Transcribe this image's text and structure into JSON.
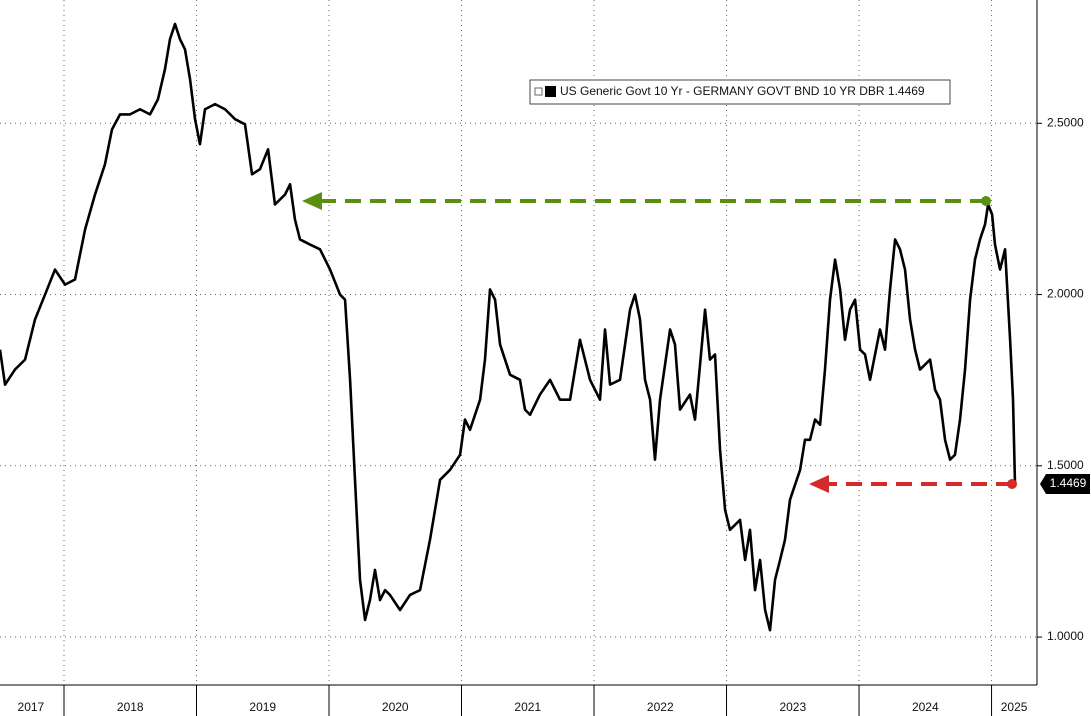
{
  "chart_data": {
    "type": "line",
    "series": [
      {
        "name": "US Generic Govt 10 Yr - GERMANY GOVT BND 10 YR DBR",
        "color": "#000000",
        "last_label": "1.4469",
        "x": [
          2017.517,
          2017.555,
          2017.63,
          2017.706,
          2017.781,
          2017.857,
          2017.932,
          2018.008,
          2018.083,
          2018.159,
          2018.234,
          2018.309,
          2018.362,
          2018.423,
          2018.498,
          2018.574,
          2018.649,
          2018.709,
          2018.762,
          2018.8,
          2018.838,
          2018.875,
          2018.913,
          2018.951,
          2018.989,
          2019.026,
          2019.064,
          2019.14,
          2019.215,
          2019.291,
          2019.366,
          2019.419,
          2019.479,
          2019.54,
          2019.592,
          2019.668,
          2019.706,
          2019.743,
          2019.781,
          2019.857,
          2019.932,
          2020.008,
          2020.083,
          2020.121,
          2020.159,
          2020.196,
          2020.234,
          2020.272,
          2020.309,
          2020.347,
          2020.385,
          2020.423,
          2020.46,
          2020.536,
          2020.611,
          2020.687,
          2020.762,
          2020.838,
          2020.913,
          2020.989,
          2021.026,
          2021.064,
          2021.14,
          2021.177,
          2021.215,
          2021.253,
          2021.291,
          2021.366,
          2021.441,
          2021.479,
          2021.517,
          2021.592,
          2021.668,
          2021.743,
          2021.819,
          2021.894,
          2021.97,
          2022.045,
          2022.083,
          2022.121,
          2022.196,
          2022.272,
          2022.309,
          2022.347,
          2022.385,
          2022.423,
          2022.46,
          2022.498,
          2022.574,
          2022.611,
          2022.649,
          2022.724,
          2022.762,
          2022.838,
          2022.875,
          2022.913,
          2022.951,
          2022.989,
          2023.026,
          2023.102,
          2023.14,
          2023.177,
          2023.215,
          2023.253,
          2023.291,
          2023.328,
          2023.366,
          2023.404,
          2023.441,
          2023.479,
          2023.555,
          2023.592,
          2023.63,
          2023.668,
          2023.706,
          2023.743,
          2023.781,
          2023.819,
          2023.857,
          2023.894,
          2023.932,
          2023.97,
          2024.008,
          2024.045,
          2024.083,
          2024.158,
          2024.196,
          2024.234,
          2024.272,
          2024.309,
          2024.347,
          2024.385,
          2024.423,
          2024.46,
          2024.536,
          2024.574,
          2024.611,
          2024.649,
          2024.687,
          2024.724,
          2024.762,
          2024.8,
          2024.838,
          2024.875,
          2024.913,
          2024.951,
          2024.974,
          2025.004,
          2025.026,
          2025.064,
          2025.102,
          2025.14,
          2025.162,
          2025.177
        ],
        "values": [
          1.839,
          1.737,
          1.781,
          1.81,
          1.927,
          2.0,
          2.073,
          2.029,
          2.044,
          2.19,
          2.292,
          2.38,
          2.482,
          2.526,
          2.526,
          2.541,
          2.526,
          2.57,
          2.658,
          2.746,
          2.79,
          2.746,
          2.716,
          2.629,
          2.512,
          2.439,
          2.541,
          2.556,
          2.541,
          2.512,
          2.497,
          2.351,
          2.366,
          2.424,
          2.263,
          2.292,
          2.322,
          2.219,
          2.161,
          2.146,
          2.132,
          2.073,
          2.0,
          1.985,
          1.751,
          1.459,
          1.167,
          1.05,
          1.108,
          1.196,
          1.108,
          1.137,
          1.123,
          1.079,
          1.123,
          1.137,
          1.284,
          1.459,
          1.488,
          1.532,
          1.635,
          1.605,
          1.693,
          1.81,
          2.015,
          1.985,
          1.854,
          1.766,
          1.751,
          1.664,
          1.649,
          1.708,
          1.751,
          1.693,
          1.693,
          1.868,
          1.751,
          1.693,
          1.898,
          1.737,
          1.751,
          1.956,
          2.0,
          1.927,
          1.751,
          1.693,
          1.518,
          1.693,
          1.898,
          1.854,
          1.664,
          1.708,
          1.635,
          1.956,
          1.81,
          1.825,
          1.547,
          1.371,
          1.313,
          1.342,
          1.225,
          1.313,
          1.137,
          1.225,
          1.079,
          1.02,
          1.167,
          1.225,
          1.284,
          1.401,
          1.488,
          1.576,
          1.576,
          1.635,
          1.62,
          1.781,
          1.985,
          2.102,
          2.015,
          1.868,
          1.956,
          1.985,
          1.839,
          1.825,
          1.751,
          1.898,
          1.839,
          2.015,
          2.161,
          2.132,
          2.073,
          1.927,
          1.839,
          1.781,
          1.81,
          1.722,
          1.693,
          1.576,
          1.518,
          1.532,
          1.635,
          1.781,
          1.985,
          2.102,
          2.161,
          2.205,
          2.263,
          2.234,
          2.146,
          2.073,
          2.132,
          1.868,
          1.693,
          1.4469
        ]
      }
    ],
    "xlim": [
      2017.517,
      2025.343
    ],
    "ylim": [
      0.86,
      2.86
    ],
    "yticks": [
      {
        "value": 1.0,
        "label": "1.0000"
      },
      {
        "value": 1.5,
        "label": "1.5000"
      },
      {
        "value": 2.0,
        "label": "2.0000"
      },
      {
        "value": 2.5,
        "label": "2.5000"
      }
    ],
    "xticks": [
      {
        "value": 2017.75,
        "label": "2017"
      },
      {
        "value": 2018.5,
        "label": "2018"
      },
      {
        "value": 2019.5,
        "label": "2019"
      },
      {
        "value": 2020.5,
        "label": "2020"
      },
      {
        "value": 2021.5,
        "label": "2021"
      },
      {
        "value": 2022.5,
        "label": "2022"
      },
      {
        "value": 2023.5,
        "label": "2023"
      },
      {
        "value": 2024.5,
        "label": "2024"
      },
      {
        "value": 2025.17,
        "label": "2025"
      }
    ],
    "xgrid": [
      2018,
      2019,
      2020,
      2021,
      2022,
      2023,
      2024,
      2025
    ],
    "grid": true
  }
}
